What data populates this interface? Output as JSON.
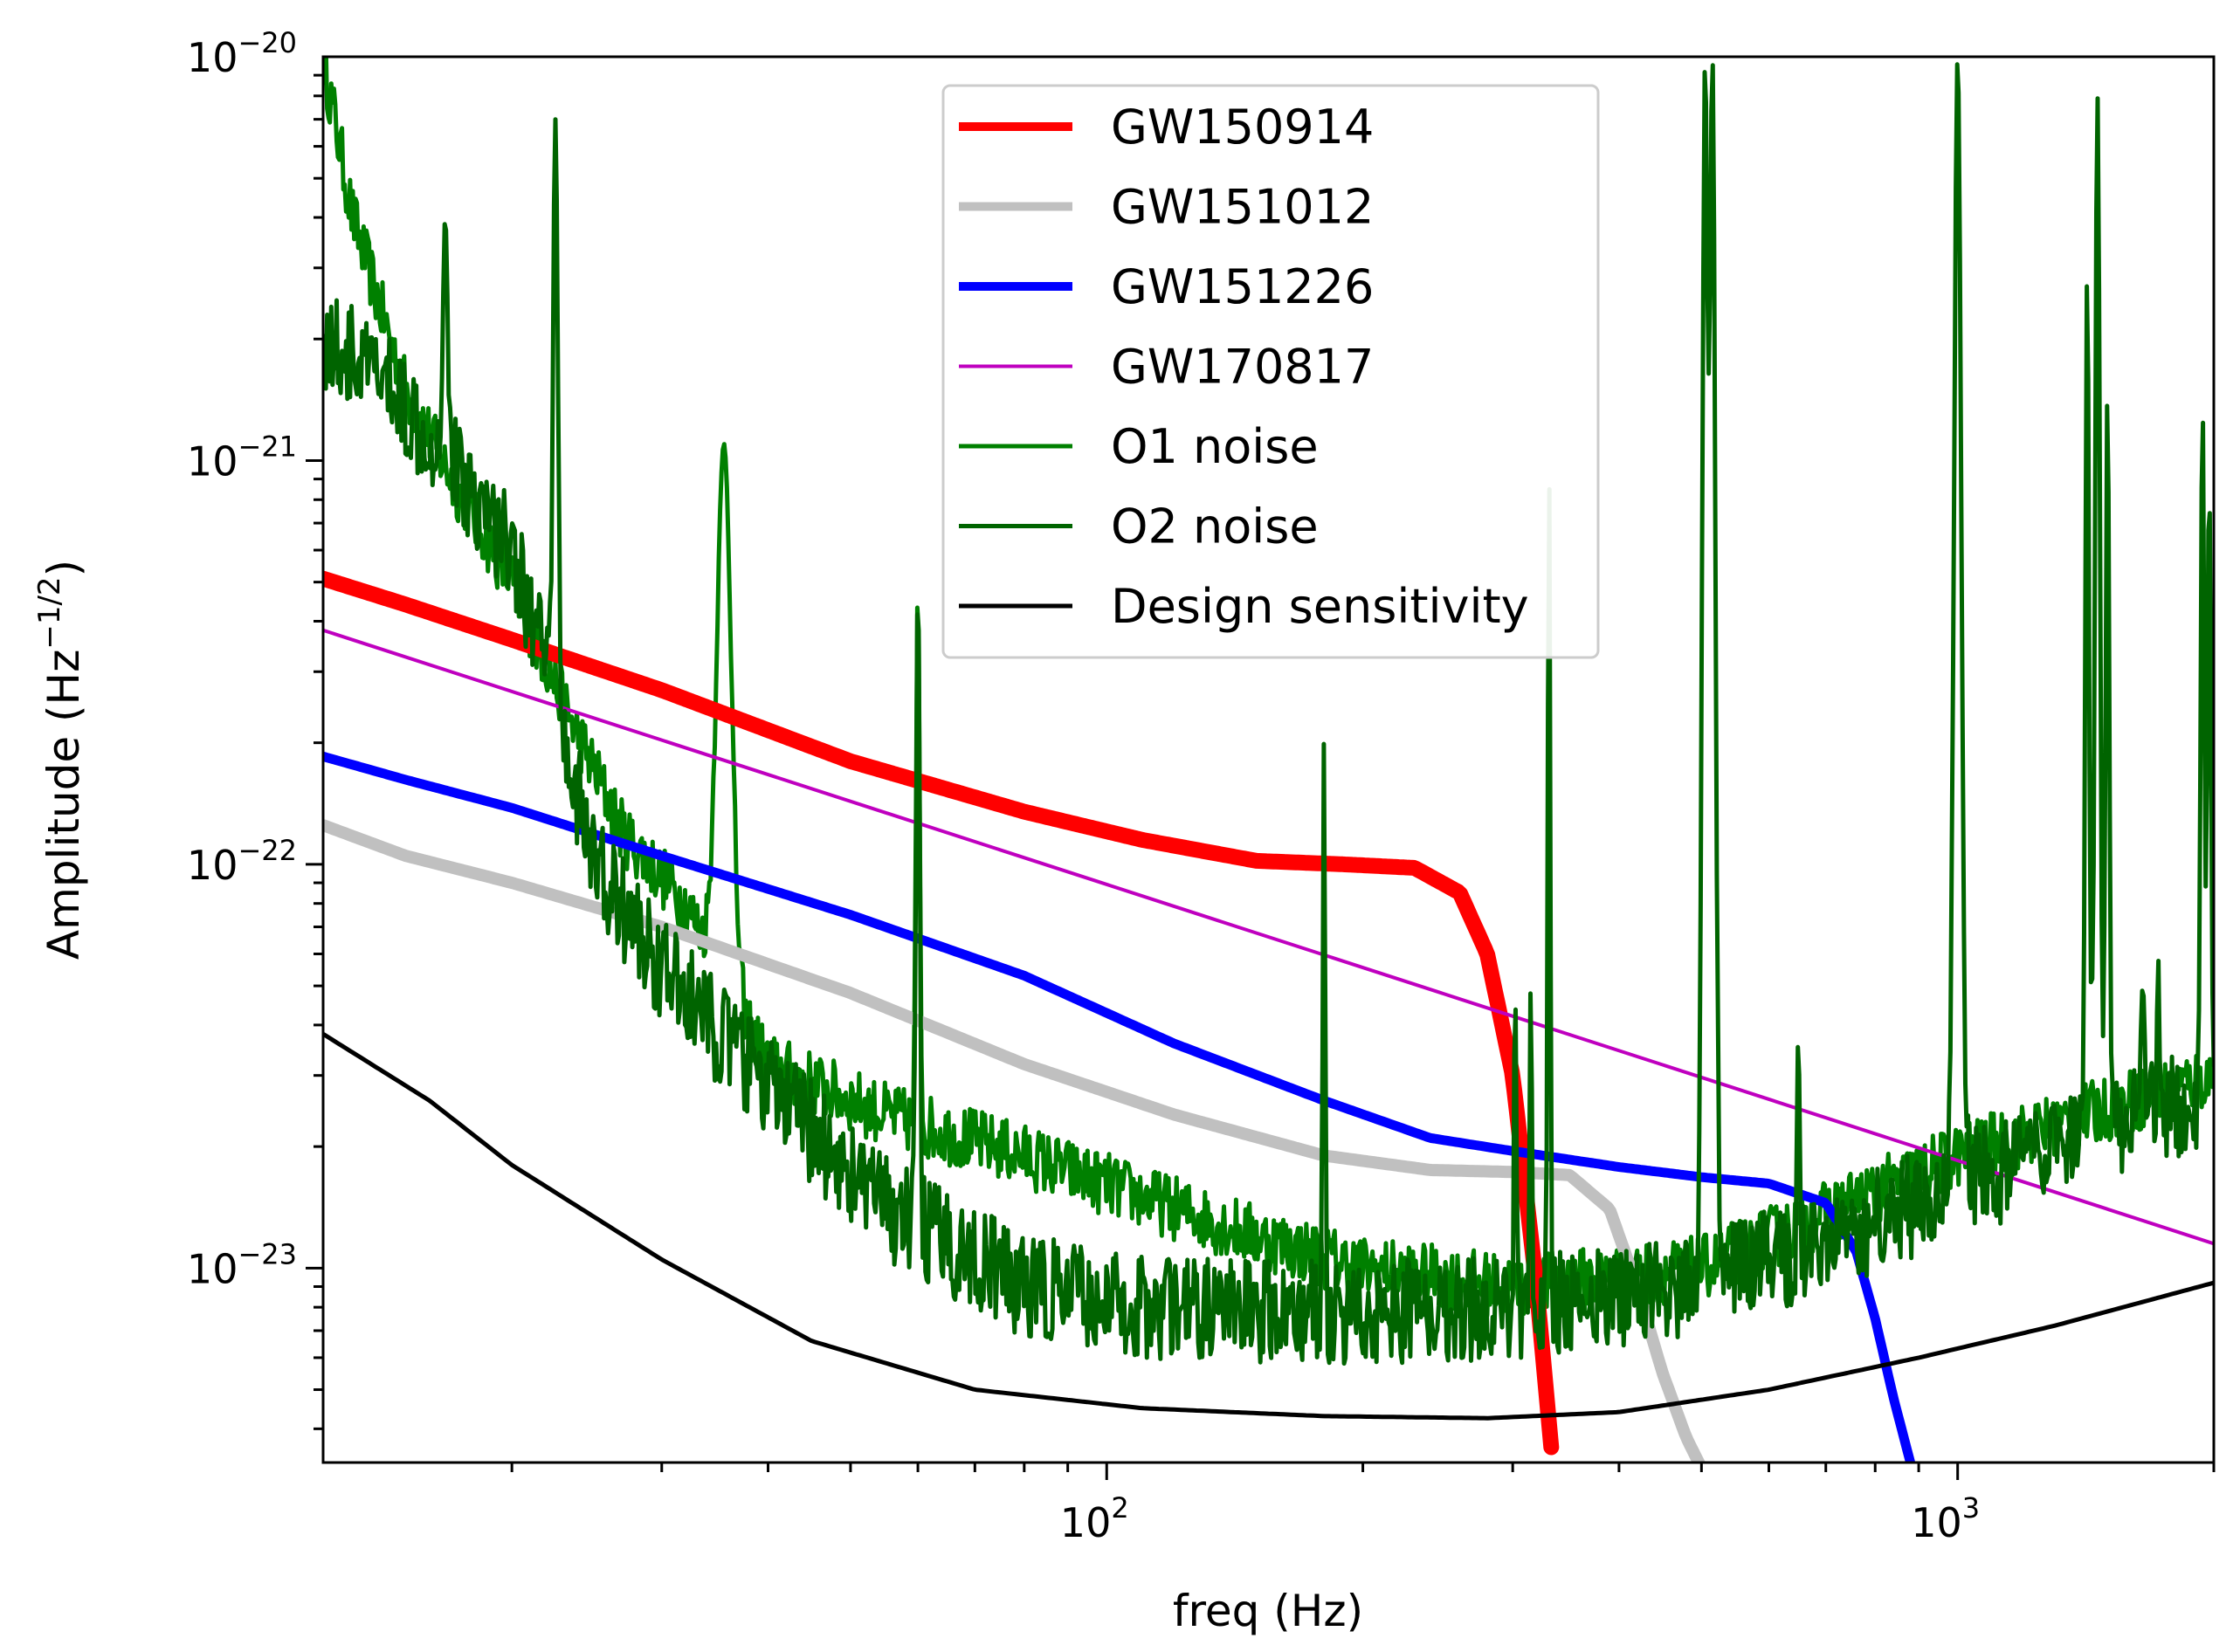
{
  "chart_data": {
    "type": "line",
    "title": "",
    "xlabel": "freq (Hz)",
    "ylabel": "Amplitude (Hz",
    "ylabel_exponent": "−1/2",
    "ylabel_close": ")",
    "xscale": "log",
    "yscale": "log",
    "xlim": [
      12,
      2000
    ],
    "ylim": [
      3.3e-24,
      1e-20
    ],
    "grid": false,
    "legend_position": "top-center",
    "x_ticks": [
      {
        "value": 100,
        "base": "10",
        "exp": "2"
      },
      {
        "value": 1000,
        "base": "10",
        "exp": "3"
      }
    ],
    "y_ticks": [
      {
        "value": 1e-20,
        "base": "10",
        "exp": "−20"
      },
      {
        "value": 1e-21,
        "base": "10",
        "exp": "−21"
      },
      {
        "value": 1e-22,
        "base": "10",
        "exp": "−22"
      },
      {
        "value": 1e-23,
        "base": "10",
        "exp": "−23"
      }
    ],
    "series": [
      {
        "name": "GW150914",
        "color": "#ff0000",
        "width": 18,
        "kind": "smooth",
        "x": [
          12,
          15,
          20,
          30,
          50,
          80,
          110,
          150,
          190,
          230,
          260,
          280,
          300,
          320,
          333
        ],
        "y": [
          5.1e-22,
          4.4e-22,
          3.6e-22,
          2.7e-22,
          1.8e-22,
          1.35e-22,
          1.15e-22,
          1.02e-22,
          1e-22,
          9.8e-23,
          8.5e-23,
          6e-23,
          3e-23,
          9e-24,
          3.6e-24
        ]
      },
      {
        "name": "GW151012",
        "color": "#c0c0c0",
        "width": 14,
        "kind": "smooth",
        "x": [
          12,
          15,
          20,
          30,
          50,
          80,
          120,
          180,
          240,
          300,
          350,
          390,
          420,
          450,
          480,
          500
        ],
        "y": [
          1.25e-22,
          1.05e-22,
          9e-23,
          7e-23,
          4.8e-23,
          3.2e-23,
          2.4e-23,
          1.9e-23,
          1.75e-23,
          1.73e-23,
          1.7e-23,
          1.4e-23,
          9e-24,
          5.5e-24,
          3.8e-24,
          3.2e-24
        ]
      },
      {
        "name": "GW151226",
        "color": "#0000ff",
        "width": 11,
        "kind": "smooth",
        "x": [
          12,
          15,
          20,
          30,
          50,
          80,
          120,
          180,
          240,
          300,
          400,
          500,
          600,
          700,
          760,
          800,
          840,
          880
        ],
        "y": [
          1.85e-22,
          1.62e-22,
          1.38e-22,
          1.05e-22,
          7.5e-23,
          5.3e-23,
          3.6e-23,
          2.6e-23,
          2.1e-23,
          1.95e-23,
          1.78e-23,
          1.68e-23,
          1.62e-23,
          1.45e-23,
          1.1e-23,
          7.5e-24,
          4.8e-24,
          3.3e-24
        ]
      },
      {
        "name": "GW170817",
        "color": "#bf00bf",
        "width": 4,
        "kind": "powerlaw",
        "x": [
          12,
          2000
        ],
        "y": [
          3.8e-22,
          1.15e-23
        ]
      },
      {
        "name": "O1 noise",
        "color": "#008000",
        "width": 5,
        "kind": "noise",
        "amp": 0.08,
        "x": [
          12,
          13,
          15,
          17,
          20,
          23,
          27,
          32,
          40,
          55,
          80,
          110,
          150,
          200,
          300,
          500,
          1000,
          2000
        ],
        "y": [
          1e-20,
          4e-21,
          1.5e-21,
          9e-22,
          5e-22,
          2.5e-22,
          1.2e-22,
          8e-23,
          3.2e-23,
          2.4e-23,
          1.9e-23,
          1.5e-23,
          1.2e-23,
          1e-23,
          9e-24,
          1e-23,
          1.9e-23,
          3e-23
        ],
        "peaks": [
          {
            "x": 35.5,
            "y": 1.1e-21,
            "w": 0.012
          },
          {
            "x": 60,
            "y": 5e-22,
            "w": 0.003
          }
        ]
      },
      {
        "name": "O2 noise",
        "color": "#006400",
        "width": 5,
        "kind": "noise",
        "amp": 0.13,
        "x": [
          12,
          14,
          17,
          20,
          22,
          25,
          30,
          40,
          55,
          80,
          110,
          150,
          200,
          300,
          500,
          800,
          1000,
          1300,
          1600,
          2000
        ],
        "y": [
          2e-21,
          1.6e-21,
          1e-21,
          6e-22,
          3e-22,
          1e-22,
          5.5e-23,
          2.8e-23,
          1.4e-23,
          9e-24,
          8e-24,
          7.8e-24,
          7.8e-24,
          8e-24,
          9e-24,
          1.3e-23,
          1.6e-23,
          1.9e-23,
          2.3e-23,
          2.7e-23
        ],
        "peaks": [
          {
            "x": 16.7,
            "y": 4e-21,
            "w": 0.004
          },
          {
            "x": 20,
            "y": 7e-22,
            "w": 0.003
          },
          {
            "x": 22.5,
            "y": 7e-21,
            "w": 0.004
          },
          {
            "x": 60,
            "y": 5e-22,
            "w": 0.003
          },
          {
            "x": 180,
            "y": 2e-22,
            "w": 0.002
          },
          {
            "x": 302,
            "y": 5e-23,
            "w": 0.002
          },
          {
            "x": 315,
            "y": 5e-23,
            "w": 0.002
          },
          {
            "x": 331,
            "y": 1e-21,
            "w": 0.002
          },
          {
            "x": 505,
            "y": 1e-20,
            "w": 0.005
          },
          {
            "x": 515,
            "y": 1e-20,
            "w": 0.005
          },
          {
            "x": 650,
            "y": 4e-23,
            "w": 0.002
          },
          {
            "x": 1000,
            "y": 1e-20,
            "w": 0.006
          },
          {
            "x": 1420,
            "y": 3e-21,
            "w": 0.003
          },
          {
            "x": 1460,
            "y": 8e-21,
            "w": 0.004
          },
          {
            "x": 1500,
            "y": 1.5e-21,
            "w": 0.003
          },
          {
            "x": 1650,
            "y": 5e-23,
            "w": 0.003
          },
          {
            "x": 1720,
            "y": 6e-23,
            "w": 0.002
          },
          {
            "x": 1940,
            "y": 1.4e-21,
            "w": 0.003
          },
          {
            "x": 1975,
            "y": 9e-22,
            "w": 0.003
          }
        ]
      },
      {
        "name": "Design sensitivity",
        "color": "#000000",
        "width": 5,
        "kind": "smooth",
        "x": [
          12,
          16,
          20,
          30,
          45,
          70,
          110,
          180,
          280,
          400,
          600,
          900,
          1300,
          2000
        ],
        "y": [
          3.8e-23,
          2.6e-23,
          1.8e-23,
          1.05e-23,
          6.6e-24,
          5e-24,
          4.5e-24,
          4.3e-24,
          4.25e-24,
          4.4e-24,
          5e-24,
          6e-24,
          7.2e-24,
          9.2e-24
        ]
      }
    ]
  }
}
